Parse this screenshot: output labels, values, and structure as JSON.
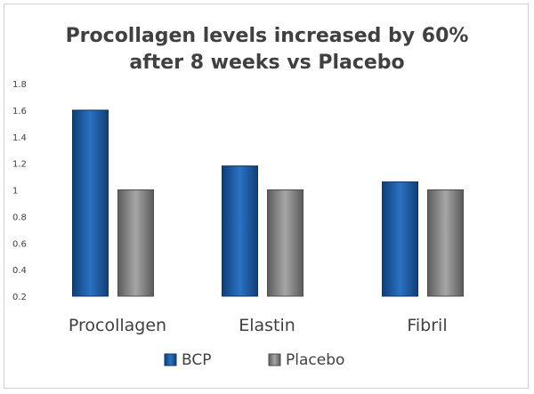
{
  "chart_data": {
    "type": "bar",
    "title_line1": "Procollagen levels increased by 60%",
    "title_line2": "after 8 weeks vs Placebo",
    "categories": [
      "Procollagen",
      "Elastin",
      "Fibril"
    ],
    "series": [
      {
        "name": "BCP",
        "values": [
          1.6,
          1.18,
          1.06
        ],
        "color": "#1f5fa6"
      },
      {
        "name": "Placebo",
        "values": [
          1.0,
          1.0,
          1.0
        ],
        "color": "#8c8c8c"
      }
    ],
    "ylim": [
      0.2,
      1.8
    ],
    "yticks": [
      "0.2",
      "0.4",
      "0.6",
      "0.8",
      "1",
      "1.2",
      "1.4",
      "1.6",
      "1.8"
    ],
    "grid": false,
    "legend_position": "bottom"
  }
}
